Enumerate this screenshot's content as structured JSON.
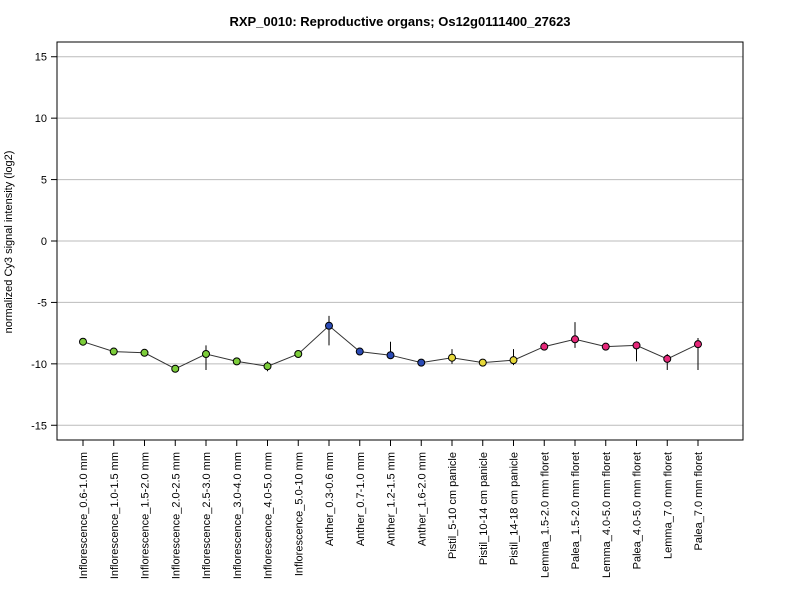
{
  "chart_data": {
    "type": "line",
    "title": "RXP_0010: Reproductive organs; Os12g0111400_27623",
    "xlabel": "",
    "ylabel": "normalized Cy3 signal intensity (log2)",
    "ylim": [
      -16.2,
      16.2
    ],
    "yticks": [
      -15,
      -10,
      -5,
      0,
      5,
      10,
      15
    ],
    "grid": "horizontal",
    "categories": [
      "Inflorescence_0.6-1.0 mm",
      "Inflorescence_1.0-1.5 mm",
      "Inflorescence_1.5-2.0 mm",
      "Inflorescence_2.0-2.5 mm",
      "Inflorescence_2.5-3.0 mm",
      "Inflorescence_3.0-4.0 mm",
      "Inflorescence_4.0-5.0 mm",
      "Inflorescence_5.0-10 mm",
      "Anther_0.3-0.6 mm",
      "Anther_0.7-1.0 mm",
      "Anther_1.2-1.5 mm",
      "Anther_1.6-2.0 mm",
      "Pistil_5-10 cm panicle",
      "Pistil_10-14 cm panicle",
      "Pistil_14-18 cm panicle",
      "Lemma_1.5-2.0 mm floret",
      "Palea_1.5-2.0 mm floret",
      "Lemma_4.0-5.0 mm floret",
      "Palea_4.0-5.0 mm floret",
      "Lemma_7.0 mm floret",
      "Palea_7.0 mm floret"
    ],
    "values": [
      -8.2,
      -9.0,
      -9.1,
      -10.4,
      -9.2,
      -9.8,
      -10.2,
      -9.2,
      -6.9,
      -9.0,
      -9.3,
      -9.9,
      -9.5,
      -9.9,
      -9.7,
      -8.6,
      -8.0,
      -8.6,
      -8.5,
      -9.6,
      -8.4
    ],
    "error_low": [
      -8.3,
      -9.1,
      -9.4,
      -10.5,
      -10.5,
      -9.9,
      -10.6,
      -9.5,
      -8.5,
      -9.1,
      -9.6,
      -10.0,
      -10.0,
      -10.1,
      -10.1,
      -8.9,
      -8.7,
      -8.7,
      -9.8,
      -10.5,
      -10.5
    ],
    "error_high": [
      -8.0,
      -8.9,
      -8.9,
      -10.3,
      -8.5,
      -9.6,
      -9.8,
      -8.9,
      -6.1,
      -8.8,
      -8.2,
      -9.8,
      -8.8,
      -9.7,
      -8.8,
      -8.2,
      -6.6,
      -8.5,
      -8.3,
      -9.2,
      -7.9
    ],
    "point_colors": [
      "#7ccd3a",
      "#7ccd3a",
      "#7ccd3a",
      "#7ccd3a",
      "#7ccd3a",
      "#7ccd3a",
      "#7ccd3a",
      "#7ccd3a",
      "#2b4bb5",
      "#2b4bb5",
      "#2b4bb5",
      "#2b4bb5",
      "#e6d83a",
      "#e6d83a",
      "#e6d83a",
      "#e6287a",
      "#e6287a",
      "#e6287a",
      "#e6287a",
      "#e6287a",
      "#e6287a"
    ],
    "line_color": "#333333",
    "grid_color": "#bbbbbb"
  }
}
